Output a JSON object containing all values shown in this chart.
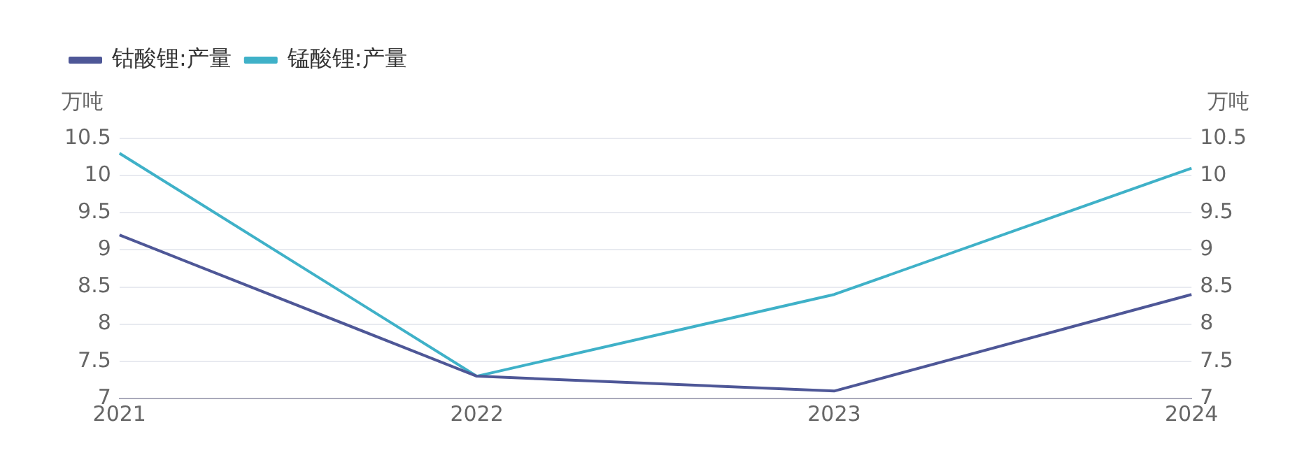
{
  "chart_data": {
    "type": "line",
    "ylabel": "万吨",
    "y2label": "万吨",
    "categories": [
      "2021",
      "2022",
      "2023",
      "2024"
    ],
    "series": [
      {
        "name": "钴酸锂:产量",
        "color": "#4e5797",
        "values": [
          9.2,
          7.3,
          7.1,
          8.4
        ]
      },
      {
        "name": "锰酸锂:产量",
        "color": "#3fb1c8",
        "values": [
          10.3,
          7.3,
          8.4,
          10.1
        ]
      }
    ],
    "ylim": [
      7,
      10.5
    ],
    "yticks": [
      7,
      7.5,
      8,
      8.5,
      9,
      9.5,
      10,
      10.5
    ],
    "y2lim": [
      7,
      10.5
    ],
    "y2ticks": [
      7,
      7.5,
      8,
      8.5,
      9,
      9.5,
      10,
      10.5
    ],
    "grid": "y",
    "legend": "top left",
    "marker": "none",
    "line_style": "solid"
  }
}
